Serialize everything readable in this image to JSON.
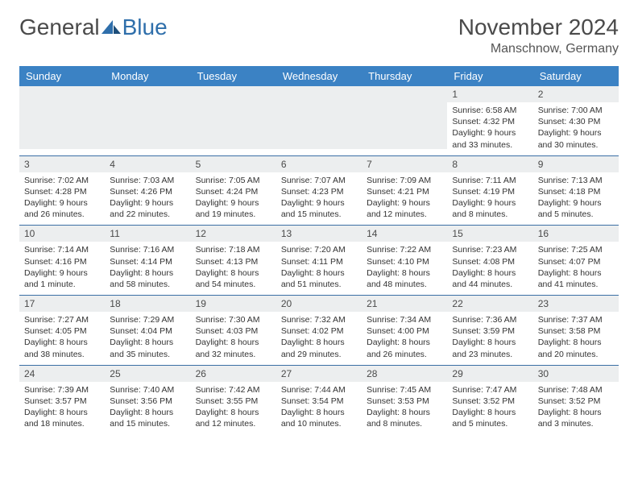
{
  "logo": {
    "word1": "General",
    "word2": "Blue"
  },
  "title": "November 2024",
  "location": "Manschnow, Germany",
  "colors": {
    "header_bg": "#3b82c4",
    "header_text": "#ffffff",
    "row_border": "#3b6fa5",
    "daynum_bg": "#eceeef",
    "body_text": "#333333",
    "title_text": "#4a4a4a",
    "logo_blue": "#2f6fab"
  },
  "day_headers": [
    "Sunday",
    "Monday",
    "Tuesday",
    "Wednesday",
    "Thursday",
    "Friday",
    "Saturday"
  ],
  "weeks": [
    [
      {
        "n": "",
        "sunrise": "",
        "sunset": "",
        "daylight": ""
      },
      {
        "n": "",
        "sunrise": "",
        "sunset": "",
        "daylight": ""
      },
      {
        "n": "",
        "sunrise": "",
        "sunset": "",
        "daylight": ""
      },
      {
        "n": "",
        "sunrise": "",
        "sunset": "",
        "daylight": ""
      },
      {
        "n": "",
        "sunrise": "",
        "sunset": "",
        "daylight": ""
      },
      {
        "n": "1",
        "sunrise": "Sunrise: 6:58 AM",
        "sunset": "Sunset: 4:32 PM",
        "daylight": "Daylight: 9 hours and 33 minutes."
      },
      {
        "n": "2",
        "sunrise": "Sunrise: 7:00 AM",
        "sunset": "Sunset: 4:30 PM",
        "daylight": "Daylight: 9 hours and 30 minutes."
      }
    ],
    [
      {
        "n": "3",
        "sunrise": "Sunrise: 7:02 AM",
        "sunset": "Sunset: 4:28 PM",
        "daylight": "Daylight: 9 hours and 26 minutes."
      },
      {
        "n": "4",
        "sunrise": "Sunrise: 7:03 AM",
        "sunset": "Sunset: 4:26 PM",
        "daylight": "Daylight: 9 hours and 22 minutes."
      },
      {
        "n": "5",
        "sunrise": "Sunrise: 7:05 AM",
        "sunset": "Sunset: 4:24 PM",
        "daylight": "Daylight: 9 hours and 19 minutes."
      },
      {
        "n": "6",
        "sunrise": "Sunrise: 7:07 AM",
        "sunset": "Sunset: 4:23 PM",
        "daylight": "Daylight: 9 hours and 15 minutes."
      },
      {
        "n": "7",
        "sunrise": "Sunrise: 7:09 AM",
        "sunset": "Sunset: 4:21 PM",
        "daylight": "Daylight: 9 hours and 12 minutes."
      },
      {
        "n": "8",
        "sunrise": "Sunrise: 7:11 AM",
        "sunset": "Sunset: 4:19 PM",
        "daylight": "Daylight: 9 hours and 8 minutes."
      },
      {
        "n": "9",
        "sunrise": "Sunrise: 7:13 AM",
        "sunset": "Sunset: 4:18 PM",
        "daylight": "Daylight: 9 hours and 5 minutes."
      }
    ],
    [
      {
        "n": "10",
        "sunrise": "Sunrise: 7:14 AM",
        "sunset": "Sunset: 4:16 PM",
        "daylight": "Daylight: 9 hours and 1 minute."
      },
      {
        "n": "11",
        "sunrise": "Sunrise: 7:16 AM",
        "sunset": "Sunset: 4:14 PM",
        "daylight": "Daylight: 8 hours and 58 minutes."
      },
      {
        "n": "12",
        "sunrise": "Sunrise: 7:18 AM",
        "sunset": "Sunset: 4:13 PM",
        "daylight": "Daylight: 8 hours and 54 minutes."
      },
      {
        "n": "13",
        "sunrise": "Sunrise: 7:20 AM",
        "sunset": "Sunset: 4:11 PM",
        "daylight": "Daylight: 8 hours and 51 minutes."
      },
      {
        "n": "14",
        "sunrise": "Sunrise: 7:22 AM",
        "sunset": "Sunset: 4:10 PM",
        "daylight": "Daylight: 8 hours and 48 minutes."
      },
      {
        "n": "15",
        "sunrise": "Sunrise: 7:23 AM",
        "sunset": "Sunset: 4:08 PM",
        "daylight": "Daylight: 8 hours and 44 minutes."
      },
      {
        "n": "16",
        "sunrise": "Sunrise: 7:25 AM",
        "sunset": "Sunset: 4:07 PM",
        "daylight": "Daylight: 8 hours and 41 minutes."
      }
    ],
    [
      {
        "n": "17",
        "sunrise": "Sunrise: 7:27 AM",
        "sunset": "Sunset: 4:05 PM",
        "daylight": "Daylight: 8 hours and 38 minutes."
      },
      {
        "n": "18",
        "sunrise": "Sunrise: 7:29 AM",
        "sunset": "Sunset: 4:04 PM",
        "daylight": "Daylight: 8 hours and 35 minutes."
      },
      {
        "n": "19",
        "sunrise": "Sunrise: 7:30 AM",
        "sunset": "Sunset: 4:03 PM",
        "daylight": "Daylight: 8 hours and 32 minutes."
      },
      {
        "n": "20",
        "sunrise": "Sunrise: 7:32 AM",
        "sunset": "Sunset: 4:02 PM",
        "daylight": "Daylight: 8 hours and 29 minutes."
      },
      {
        "n": "21",
        "sunrise": "Sunrise: 7:34 AM",
        "sunset": "Sunset: 4:00 PM",
        "daylight": "Daylight: 8 hours and 26 minutes."
      },
      {
        "n": "22",
        "sunrise": "Sunrise: 7:36 AM",
        "sunset": "Sunset: 3:59 PM",
        "daylight": "Daylight: 8 hours and 23 minutes."
      },
      {
        "n": "23",
        "sunrise": "Sunrise: 7:37 AM",
        "sunset": "Sunset: 3:58 PM",
        "daylight": "Daylight: 8 hours and 20 minutes."
      }
    ],
    [
      {
        "n": "24",
        "sunrise": "Sunrise: 7:39 AM",
        "sunset": "Sunset: 3:57 PM",
        "daylight": "Daylight: 8 hours and 18 minutes."
      },
      {
        "n": "25",
        "sunrise": "Sunrise: 7:40 AM",
        "sunset": "Sunset: 3:56 PM",
        "daylight": "Daylight: 8 hours and 15 minutes."
      },
      {
        "n": "26",
        "sunrise": "Sunrise: 7:42 AM",
        "sunset": "Sunset: 3:55 PM",
        "daylight": "Daylight: 8 hours and 12 minutes."
      },
      {
        "n": "27",
        "sunrise": "Sunrise: 7:44 AM",
        "sunset": "Sunset: 3:54 PM",
        "daylight": "Daylight: 8 hours and 10 minutes."
      },
      {
        "n": "28",
        "sunrise": "Sunrise: 7:45 AM",
        "sunset": "Sunset: 3:53 PM",
        "daylight": "Daylight: 8 hours and 8 minutes."
      },
      {
        "n": "29",
        "sunrise": "Sunrise: 7:47 AM",
        "sunset": "Sunset: 3:52 PM",
        "daylight": "Daylight: 8 hours and 5 minutes."
      },
      {
        "n": "30",
        "sunrise": "Sunrise: 7:48 AM",
        "sunset": "Sunset: 3:52 PM",
        "daylight": "Daylight: 8 hours and 3 minutes."
      }
    ]
  ]
}
